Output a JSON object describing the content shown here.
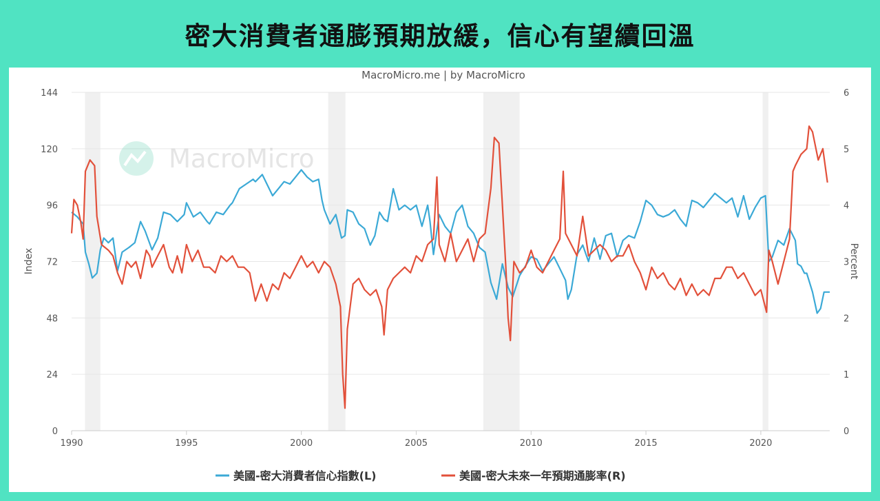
{
  "page_title": "密大消費者通膨預期放緩，信心有望續回溫",
  "credit": "MacroMicro.me | by MacroMicro",
  "watermark": "MacroMicro",
  "colors": {
    "background": "#50e3c2",
    "confidence": "#3ba9d6",
    "inflation": "#e2503a",
    "recession": "#f0f0f0"
  },
  "chart_data": {
    "type": "line",
    "x_axis": {
      "range": [
        1990,
        2023
      ],
      "ticks": [
        "1990",
        "1995",
        "2000",
        "2005",
        "2010",
        "2015",
        "2020"
      ]
    },
    "y_left": {
      "label": "Index",
      "range": [
        0,
        144
      ],
      "ticks": [
        "0",
        "24",
        "48",
        "72",
        "96",
        "120",
        "144"
      ]
    },
    "y_right": {
      "label": "Percent",
      "range": [
        0,
        6
      ],
      "ticks": [
        "0",
        "1",
        "2",
        "3",
        "4",
        "5",
        "6"
      ]
    },
    "recessions": [
      [
        1990.58,
        1991.25
      ],
      [
        2001.17,
        2001.92
      ],
      [
        2007.92,
        2009.5
      ],
      [
        2020.08,
        2020.33
      ]
    ],
    "legend_position": "bottom",
    "series": [
      {
        "name": "美國-密大消費者信心指數(L)",
        "axis": "left",
        "points": [
          [
            1990.0,
            93
          ],
          [
            1990.25,
            91
          ],
          [
            1990.5,
            88
          ],
          [
            1990.6,
            76
          ],
          [
            1990.75,
            71
          ],
          [
            1990.9,
            65
          ],
          [
            1991.1,
            67
          ],
          [
            1991.25,
            77
          ],
          [
            1991.4,
            82
          ],
          [
            1991.6,
            80
          ],
          [
            1991.8,
            82
          ],
          [
            1992.0,
            68
          ],
          [
            1992.2,
            76
          ],
          [
            1992.5,
            78
          ],
          [
            1992.75,
            80
          ],
          [
            1993.0,
            89
          ],
          [
            1993.2,
            85
          ],
          [
            1993.5,
            77
          ],
          [
            1993.75,
            82
          ],
          [
            1994.0,
            93
          ],
          [
            1994.3,
            92
          ],
          [
            1994.6,
            89
          ],
          [
            1994.9,
            92
          ],
          [
            1995.0,
            97
          ],
          [
            1995.3,
            91
          ],
          [
            1995.6,
            93
          ],
          [
            1995.9,
            89
          ],
          [
            1996.0,
            88
          ],
          [
            1996.3,
            93
          ],
          [
            1996.6,
            92
          ],
          [
            1996.9,
            96
          ],
          [
            1997.0,
            97
          ],
          [
            1997.3,
            103
          ],
          [
            1997.6,
            105
          ],
          [
            1997.9,
            107
          ],
          [
            1998.0,
            106
          ],
          [
            1998.3,
            109
          ],
          [
            1998.5,
            105
          ],
          [
            1998.75,
            100
          ],
          [
            1999.0,
            103
          ],
          [
            1999.25,
            106
          ],
          [
            1999.5,
            105
          ],
          [
            1999.75,
            108
          ],
          [
            2000.0,
            111
          ],
          [
            2000.25,
            108
          ],
          [
            2000.5,
            106
          ],
          [
            2000.75,
            107
          ],
          [
            2000.9,
            98
          ],
          [
            2001.0,
            94
          ],
          [
            2001.25,
            88
          ],
          [
            2001.5,
            92
          ],
          [
            2001.75,
            82
          ],
          [
            2001.9,
            83
          ],
          [
            2002.0,
            94
          ],
          [
            2002.25,
            93
          ],
          [
            2002.5,
            88
          ],
          [
            2002.75,
            86
          ],
          [
            2003.0,
            79
          ],
          [
            2003.2,
            83
          ],
          [
            2003.4,
            93
          ],
          [
            2003.6,
            90
          ],
          [
            2003.75,
            89
          ],
          [
            2004.0,
            103
          ],
          [
            2004.25,
            94
          ],
          [
            2004.5,
            96
          ],
          [
            2004.75,
            94
          ],
          [
            2005.0,
            96
          ],
          [
            2005.25,
            87
          ],
          [
            2005.5,
            96
          ],
          [
            2005.6,
            89
          ],
          [
            2005.75,
            75
          ],
          [
            2006.0,
            92
          ],
          [
            2006.25,
            87
          ],
          [
            2006.5,
            84
          ],
          [
            2006.75,
            93
          ],
          [
            2007.0,
            96
          ],
          [
            2007.25,
            87
          ],
          [
            2007.5,
            84
          ],
          [
            2007.75,
            78
          ],
          [
            2008.0,
            76
          ],
          [
            2008.25,
            63
          ],
          [
            2008.5,
            56
          ],
          [
            2008.75,
            71
          ],
          [
            2009.0,
            61
          ],
          [
            2009.2,
            57
          ],
          [
            2009.5,
            66
          ],
          [
            2009.75,
            70
          ],
          [
            2010.0,
            74
          ],
          [
            2010.25,
            73
          ],
          [
            2010.5,
            68
          ],
          [
            2010.75,
            71
          ],
          [
            2011.0,
            74
          ],
          [
            2011.25,
            69
          ],
          [
            2011.5,
            64
          ],
          [
            2011.6,
            56
          ],
          [
            2011.75,
            60
          ],
          [
            2012.0,
            75
          ],
          [
            2012.25,
            79
          ],
          [
            2012.5,
            72
          ],
          [
            2012.75,
            82
          ],
          [
            2013.0,
            73
          ],
          [
            2013.25,
            83
          ],
          [
            2013.5,
            84
          ],
          [
            2013.75,
            74
          ],
          [
            2014.0,
            81
          ],
          [
            2014.25,
            83
          ],
          [
            2014.5,
            82
          ],
          [
            2014.75,
            89
          ],
          [
            2015.0,
            98
          ],
          [
            2015.25,
            96
          ],
          [
            2015.5,
            92
          ],
          [
            2015.75,
            91
          ],
          [
            2016.0,
            92
          ],
          [
            2016.25,
            94
          ],
          [
            2016.5,
            90
          ],
          [
            2016.75,
            87
          ],
          [
            2017.0,
            98
          ],
          [
            2017.25,
            97
          ],
          [
            2017.5,
            95
          ],
          [
            2017.75,
            98
          ],
          [
            2018.0,
            101
          ],
          [
            2018.25,
            99
          ],
          [
            2018.5,
            97
          ],
          [
            2018.75,
            99
          ],
          [
            2019.0,
            91
          ],
          [
            2019.25,
            100
          ],
          [
            2019.5,
            90
          ],
          [
            2019.75,
            95
          ],
          [
            2020.0,
            99
          ],
          [
            2020.2,
            100
          ],
          [
            2020.35,
            72
          ],
          [
            2020.5,
            74
          ],
          [
            2020.75,
            81
          ],
          [
            2021.0,
            79
          ],
          [
            2021.25,
            86
          ],
          [
            2021.5,
            81
          ],
          [
            2021.6,
            71
          ],
          [
            2021.75,
            70
          ],
          [
            2021.9,
            67
          ],
          [
            2022.0,
            67
          ],
          [
            2022.25,
            59
          ],
          [
            2022.45,
            50
          ],
          [
            2022.6,
            52
          ],
          [
            2022.75,
            59
          ],
          [
            2023.0,
            59
          ]
        ]
      },
      {
        "name": "美國-密大未來一年預期通膨率(R)",
        "axis": "right",
        "points": [
          [
            1990.0,
            3.5
          ],
          [
            1990.1,
            4.1
          ],
          [
            1990.25,
            4.0
          ],
          [
            1990.4,
            3.7
          ],
          [
            1990.5,
            3.4
          ],
          [
            1990.6,
            4.6
          ],
          [
            1990.8,
            4.8
          ],
          [
            1991.0,
            4.7
          ],
          [
            1991.1,
            3.8
          ],
          [
            1991.3,
            3.3
          ],
          [
            1991.6,
            3.2
          ],
          [
            1991.8,
            3.1
          ],
          [
            1992.0,
            2.8
          ],
          [
            1992.2,
            2.6
          ],
          [
            1992.4,
            3.0
          ],
          [
            1992.6,
            2.9
          ],
          [
            1992.8,
            3.0
          ],
          [
            1993.0,
            2.7
          ],
          [
            1993.25,
            3.2
          ],
          [
            1993.4,
            3.1
          ],
          [
            1993.5,
            2.9
          ],
          [
            1993.75,
            3.1
          ],
          [
            1994.0,
            3.3
          ],
          [
            1994.25,
            2.9
          ],
          [
            1994.4,
            2.8
          ],
          [
            1994.6,
            3.1
          ],
          [
            1994.8,
            2.8
          ],
          [
            1995.0,
            3.3
          ],
          [
            1995.25,
            3.0
          ],
          [
            1995.5,
            3.2
          ],
          [
            1995.75,
            2.9
          ],
          [
            1996.0,
            2.9
          ],
          [
            1996.25,
            2.8
          ],
          [
            1996.5,
            3.1
          ],
          [
            1996.75,
            3.0
          ],
          [
            1997.0,
            3.1
          ],
          [
            1997.25,
            2.9
          ],
          [
            1997.5,
            2.9
          ],
          [
            1997.75,
            2.8
          ],
          [
            1998.0,
            2.3
          ],
          [
            1998.25,
            2.6
          ],
          [
            1998.5,
            2.3
          ],
          [
            1998.75,
            2.6
          ],
          [
            1999.0,
            2.5
          ],
          [
            1999.25,
            2.8
          ],
          [
            1999.5,
            2.7
          ],
          [
            1999.75,
            2.9
          ],
          [
            2000.0,
            3.1
          ],
          [
            2000.25,
            2.9
          ],
          [
            2000.5,
            3.0
          ],
          [
            2000.75,
            2.8
          ],
          [
            2001.0,
            3.0
          ],
          [
            2001.25,
            2.9
          ],
          [
            2001.5,
            2.6
          ],
          [
            2001.7,
            2.2
          ],
          [
            2001.8,
            1.0
          ],
          [
            2001.9,
            0.4
          ],
          [
            2002.0,
            1.8
          ],
          [
            2002.25,
            2.6
          ],
          [
            2002.5,
            2.7
          ],
          [
            2002.75,
            2.5
          ],
          [
            2003.0,
            2.4
          ],
          [
            2003.25,
            2.5
          ],
          [
            2003.5,
            2.2
          ],
          [
            2003.6,
            1.7
          ],
          [
            2003.75,
            2.5
          ],
          [
            2004.0,
            2.7
          ],
          [
            2004.25,
            2.8
          ],
          [
            2004.5,
            2.9
          ],
          [
            2004.75,
            2.8
          ],
          [
            2005.0,
            3.1
          ],
          [
            2005.25,
            3.0
          ],
          [
            2005.5,
            3.3
          ],
          [
            2005.75,
            3.4
          ],
          [
            2005.9,
            4.5
          ],
          [
            2006.0,
            3.3
          ],
          [
            2006.25,
            3.0
          ],
          [
            2006.5,
            3.5
          ],
          [
            2006.75,
            3.0
          ],
          [
            2007.0,
            3.2
          ],
          [
            2007.25,
            3.4
          ],
          [
            2007.5,
            3.0
          ],
          [
            2007.75,
            3.4
          ],
          [
            2008.0,
            3.5
          ],
          [
            2008.25,
            4.3
          ],
          [
            2008.4,
            5.2
          ],
          [
            2008.6,
            5.1
          ],
          [
            2008.75,
            4.0
          ],
          [
            2008.9,
            2.9
          ],
          [
            2009.0,
            2.0
          ],
          [
            2009.1,
            1.6
          ],
          [
            2009.25,
            3.0
          ],
          [
            2009.5,
            2.8
          ],
          [
            2009.75,
            2.9
          ],
          [
            2010.0,
            3.2
          ],
          [
            2010.25,
            2.9
          ],
          [
            2010.5,
            2.8
          ],
          [
            2010.75,
            3.0
          ],
          [
            2011.0,
            3.2
          ],
          [
            2011.25,
            3.4
          ],
          [
            2011.4,
            4.6
          ],
          [
            2011.5,
            3.5
          ],
          [
            2011.75,
            3.3
          ],
          [
            2012.0,
            3.1
          ],
          [
            2012.25,
            3.8
          ],
          [
            2012.5,
            3.1
          ],
          [
            2012.75,
            3.2
          ],
          [
            2013.0,
            3.3
          ],
          [
            2013.25,
            3.2
          ],
          [
            2013.5,
            3.0
          ],
          [
            2013.75,
            3.1
          ],
          [
            2014.0,
            3.1
          ],
          [
            2014.25,
            3.3
          ],
          [
            2014.5,
            3.0
          ],
          [
            2014.75,
            2.8
          ],
          [
            2015.0,
            2.5
          ],
          [
            2015.25,
            2.9
          ],
          [
            2015.5,
            2.7
          ],
          [
            2015.75,
            2.8
          ],
          [
            2016.0,
            2.6
          ],
          [
            2016.25,
            2.5
          ],
          [
            2016.5,
            2.7
          ],
          [
            2016.75,
            2.4
          ],
          [
            2017.0,
            2.6
          ],
          [
            2017.25,
            2.4
          ],
          [
            2017.5,
            2.5
          ],
          [
            2017.75,
            2.4
          ],
          [
            2018.0,
            2.7
          ],
          [
            2018.25,
            2.7
          ],
          [
            2018.5,
            2.9
          ],
          [
            2018.75,
            2.9
          ],
          [
            2019.0,
            2.7
          ],
          [
            2019.25,
            2.8
          ],
          [
            2019.5,
            2.6
          ],
          [
            2019.75,
            2.4
          ],
          [
            2020.0,
            2.5
          ],
          [
            2020.25,
            2.1
          ],
          [
            2020.35,
            3.2
          ],
          [
            2020.5,
            3.0
          ],
          [
            2020.75,
            2.6
          ],
          [
            2021.0,
            3.0
          ],
          [
            2021.25,
            3.4
          ],
          [
            2021.4,
            4.6
          ],
          [
            2021.5,
            4.7
          ],
          [
            2021.75,
            4.9
          ],
          [
            2022.0,
            5.0
          ],
          [
            2022.1,
            5.4
          ],
          [
            2022.25,
            5.3
          ],
          [
            2022.5,
            4.8
          ],
          [
            2022.7,
            5.0
          ],
          [
            2022.9,
            4.4
          ]
        ]
      }
    ]
  }
}
